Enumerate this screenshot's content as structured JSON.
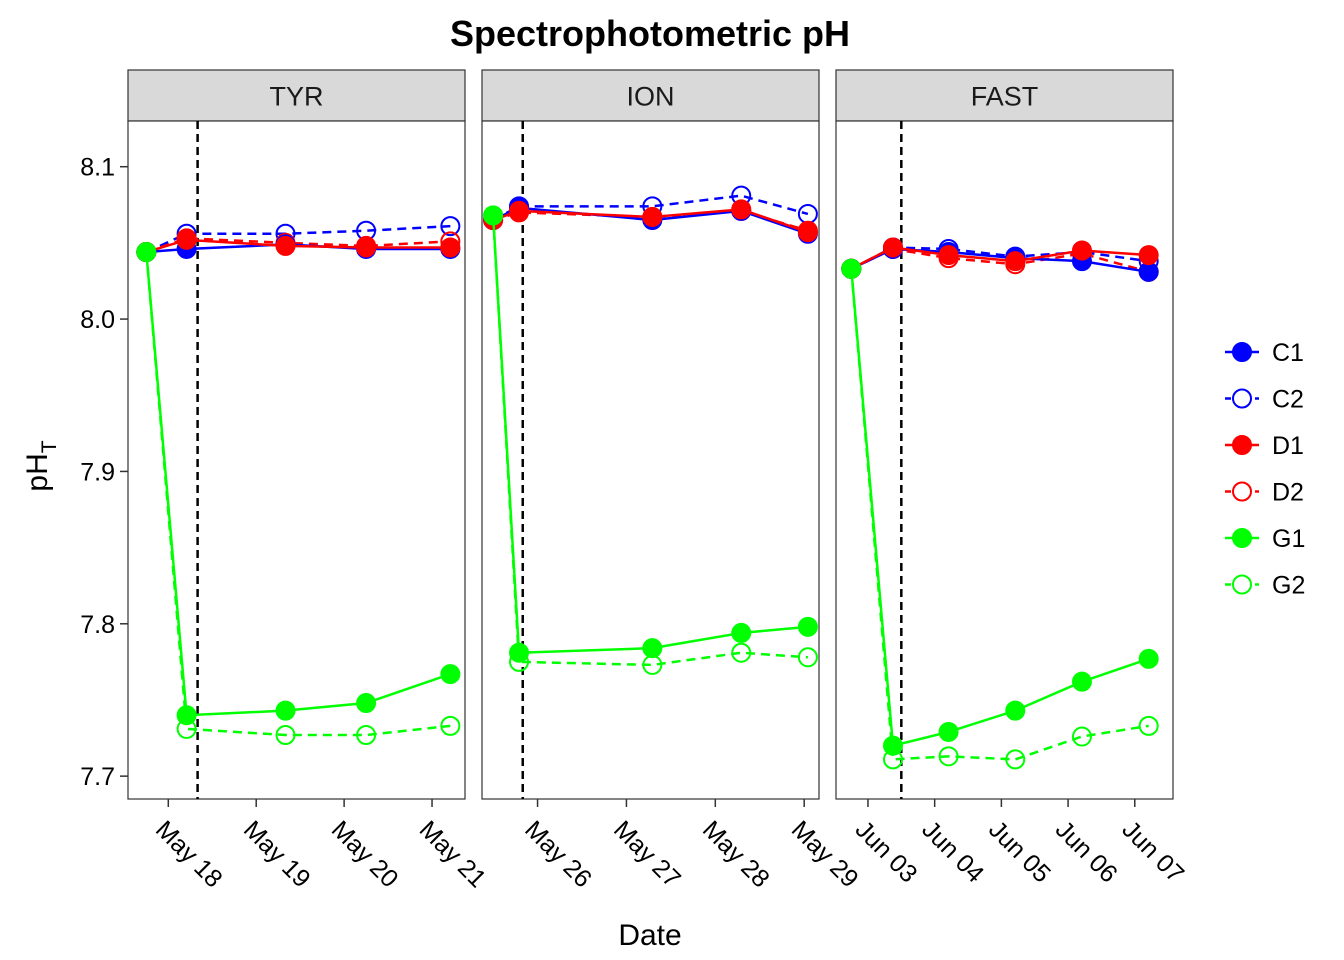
{
  "chart_data": {
    "type": "line",
    "title": "Spectrophotometric pH",
    "xlabel": "Date",
    "ylabel": "pH",
    "ylabel_subscript": "T",
    "ylim": [
      7.685,
      8.13
    ],
    "y_ticks": [
      7.7,
      7.8,
      7.9,
      8.0,
      8.1
    ],
    "grid": false,
    "legend_position": "right",
    "legend": [
      {
        "name": "C1",
        "color": "#0000FF",
        "filled": true,
        "dashed": false
      },
      {
        "name": "C2",
        "color": "#0000FF",
        "filled": false,
        "dashed": true
      },
      {
        "name": "D1",
        "color": "#FF0000",
        "filled": true,
        "dashed": false
      },
      {
        "name": "D2",
        "color": "#FF0000",
        "filled": false,
        "dashed": true
      },
      {
        "name": "G1",
        "color": "#00FF00",
        "filled": true,
        "dashed": false
      },
      {
        "name": "G2",
        "color": "#00FF00",
        "filled": false,
        "dashed": true
      }
    ],
    "panels": [
      {
        "name": "TYR",
        "x_range": [
          "2017-05-17 13:00",
          "2017-05-21 09:00"
        ],
        "x_ticks": [
          [
            "2017-05-18 00:00",
            "May 18"
          ],
          [
            "2017-05-19 00:00",
            "May 19"
          ],
          [
            "2017-05-20 00:00",
            "May 20"
          ],
          [
            "2017-05-21 00:00",
            "May 21"
          ]
        ],
        "vline": "2017-05-18 08:00",
        "series": [
          {
            "name": "C1",
            "points": [
              [
                "2017-05-17 18:00",
                8.044
              ],
              [
                "2017-05-18 05:00",
                8.046
              ],
              [
                "2017-05-19 08:00",
                8.049
              ],
              [
                "2017-05-20 06:00",
                8.046
              ],
              [
                "2017-05-21 05:00",
                8.046
              ]
            ]
          },
          {
            "name": "C2",
            "points": [
              [
                "2017-05-17 18:00",
                8.044
              ],
              [
                "2017-05-18 05:00",
                8.056
              ],
              [
                "2017-05-19 08:00",
                8.056
              ],
              [
                "2017-05-20 06:00",
                8.058
              ],
              [
                "2017-05-21 05:00",
                8.061
              ]
            ]
          },
          {
            "name": "D1",
            "points": [
              [
                "2017-05-17 18:00",
                8.044
              ],
              [
                "2017-05-18 05:00",
                8.052
              ],
              [
                "2017-05-19 08:00",
                8.048
              ],
              [
                "2017-05-20 06:00",
                8.047
              ],
              [
                "2017-05-21 05:00",
                8.047
              ]
            ]
          },
          {
            "name": "D2",
            "points": [
              [
                "2017-05-17 18:00",
                8.044
              ],
              [
                "2017-05-18 05:00",
                8.053
              ],
              [
                "2017-05-19 08:00",
                8.05
              ],
              [
                "2017-05-20 06:00",
                8.048
              ],
              [
                "2017-05-21 05:00",
                8.051
              ]
            ]
          },
          {
            "name": "G1",
            "points": [
              [
                "2017-05-17 18:00",
                8.044
              ],
              [
                "2017-05-18 05:00",
                7.74
              ],
              [
                "2017-05-19 08:00",
                7.743
              ],
              [
                "2017-05-20 06:00",
                7.748
              ],
              [
                "2017-05-21 05:00",
                7.767
              ]
            ]
          },
          {
            "name": "G2",
            "points": [
              [
                "2017-05-17 18:00",
                8.044
              ],
              [
                "2017-05-18 05:00",
                7.731
              ],
              [
                "2017-05-19 08:00",
                7.727
              ],
              [
                "2017-05-20 06:00",
                7.727
              ],
              [
                "2017-05-21 05:00",
                7.733
              ]
            ]
          }
        ]
      },
      {
        "name": "ION",
        "x_range": [
          "2017-05-25 09:00",
          "2017-05-29 04:00"
        ],
        "x_ticks": [
          [
            "2017-05-26 00:00",
            "May 26"
          ],
          [
            "2017-05-27 00:00",
            "May 27"
          ],
          [
            "2017-05-28 00:00",
            "May 28"
          ],
          [
            "2017-05-29 00:00",
            "May 29"
          ]
        ],
        "vline": "2017-05-25 20:00",
        "series": [
          {
            "name": "C1",
            "points": [
              [
                "2017-05-25 12:00",
                8.065
              ],
              [
                "2017-05-25 19:00",
                8.073
              ],
              [
                "2017-05-27 07:00",
                8.065
              ],
              [
                "2017-05-28 07:00",
                8.071
              ],
              [
                "2017-05-29 01:00",
                8.056
              ]
            ]
          },
          {
            "name": "C2",
            "points": [
              [
                "2017-05-25 12:00",
                8.065
              ],
              [
                "2017-05-25 19:00",
                8.074
              ],
              [
                "2017-05-27 07:00",
                8.074
              ],
              [
                "2017-05-28 07:00",
                8.081
              ],
              [
                "2017-05-29 01:00",
                8.069
              ]
            ]
          },
          {
            "name": "D1",
            "points": [
              [
                "2017-05-25 12:00",
                8.065
              ],
              [
                "2017-05-25 19:00",
                8.071
              ],
              [
                "2017-05-27 07:00",
                8.067
              ],
              [
                "2017-05-28 07:00",
                8.072
              ],
              [
                "2017-05-29 01:00",
                8.057
              ]
            ]
          },
          {
            "name": "D2",
            "points": [
              [
                "2017-05-25 12:00",
                8.065
              ],
              [
                "2017-05-25 19:00",
                8.07
              ],
              [
                "2017-05-27 07:00",
                8.067
              ],
              [
                "2017-05-28 07:00",
                8.071
              ],
              [
                "2017-05-29 01:00",
                8.058
              ]
            ]
          },
          {
            "name": "G1",
            "points": [
              [
                "2017-05-25 12:00",
                8.068
              ],
              [
                "2017-05-25 19:00",
                7.781
              ],
              [
                "2017-05-27 07:00",
                7.784
              ],
              [
                "2017-05-28 07:00",
                7.794
              ],
              [
                "2017-05-29 01:00",
                7.798
              ]
            ]
          },
          {
            "name": "G2",
            "points": [
              [
                "2017-05-25 12:00",
                8.068
              ],
              [
                "2017-05-25 19:00",
                7.775
              ],
              [
                "2017-05-27 07:00",
                7.773
              ],
              [
                "2017-05-28 07:00",
                7.781
              ],
              [
                "2017-05-29 01:00",
                7.778
              ]
            ]
          }
        ]
      },
      {
        "name": "FAST",
        "x_range": [
          "2017-06-02 12:30",
          "2017-06-07 13:45"
        ],
        "x_ticks": [
          [
            "2017-06-03 00:00",
            "Jun 03"
          ],
          [
            "2017-06-04 00:00",
            "Jun 04"
          ],
          [
            "2017-06-05 00:00",
            "Jun 05"
          ],
          [
            "2017-06-06 00:00",
            "Jun 06"
          ],
          [
            "2017-06-07 00:00",
            "Jun 07"
          ]
        ],
        "vline": "2017-06-03 12:00",
        "series": [
          {
            "name": "C1",
            "points": [
              [
                "2017-06-02 18:00",
                8.033
              ],
              [
                "2017-06-03 09:00",
                8.046
              ],
              [
                "2017-06-04 05:00",
                8.044
              ],
              [
                "2017-06-05 05:00",
                8.04
              ],
              [
                "2017-06-06 05:00",
                8.038
              ],
              [
                "2017-06-07 05:00",
                8.031
              ]
            ]
          },
          {
            "name": "C2",
            "points": [
              [
                "2017-06-02 18:00",
                8.033
              ],
              [
                "2017-06-03 09:00",
                8.047
              ],
              [
                "2017-06-04 05:00",
                8.046
              ],
              [
                "2017-06-05 05:00",
                8.041
              ],
              [
                "2017-06-06 05:00",
                8.044
              ],
              [
                "2017-06-07 05:00",
                8.038
              ]
            ]
          },
          {
            "name": "D1",
            "points": [
              [
                "2017-06-02 18:00",
                8.033
              ],
              [
                "2017-06-03 09:00",
                8.047
              ],
              [
                "2017-06-04 05:00",
                8.042
              ],
              [
                "2017-06-05 05:00",
                8.038
              ],
              [
                "2017-06-06 05:00",
                8.045
              ],
              [
                "2017-06-07 05:00",
                8.042
              ]
            ]
          },
          {
            "name": "D2",
            "points": [
              [
                "2017-06-02 18:00",
                8.033
              ],
              [
                "2017-06-03 09:00",
                8.046
              ],
              [
                "2017-06-04 05:00",
                8.04
              ],
              [
                "2017-06-05 05:00",
                8.036
              ],
              [
                "2017-06-06 05:00",
                8.043
              ],
              [
                "2017-06-07 05:00",
                8.031
              ]
            ]
          },
          {
            "name": "G1",
            "points": [
              [
                "2017-06-02 18:00",
                8.033
              ],
              [
                "2017-06-03 09:00",
                7.72
              ],
              [
                "2017-06-04 05:00",
                7.729
              ],
              [
                "2017-06-05 05:00",
                7.743
              ],
              [
                "2017-06-06 05:00",
                7.762
              ],
              [
                "2017-06-07 05:00",
                7.777
              ]
            ]
          },
          {
            "name": "G2",
            "points": [
              [
                "2017-06-02 18:00",
                8.033
              ],
              [
                "2017-06-03 09:00",
                7.711
              ],
              [
                "2017-06-04 05:00",
                7.713
              ],
              [
                "2017-06-05 05:00",
                7.711
              ],
              [
                "2017-06-06 05:00",
                7.726
              ],
              [
                "2017-06-07 05:00",
                7.733
              ]
            ]
          }
        ]
      }
    ]
  }
}
